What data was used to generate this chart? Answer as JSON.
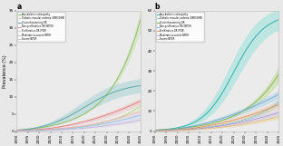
{
  "panel_a": {
    "title": "a",
    "lines": [
      {
        "label": "Any diabetic retinopathy",
        "color": "#8cc068",
        "lw": 0.7,
        "alpha": 1.0,
        "dashed": false
      },
      {
        "label": "Diabetic macular oedema (DMO/DME)",
        "color": "#8cc068",
        "lw": 0.5,
        "alpha": 0.7,
        "dashed": true
      },
      {
        "label": "Vision threatening DR",
        "color": "#60a8a8",
        "lw": 0.7,
        "alpha": 1.0,
        "dashed": false
      },
      {
        "label": "Non-proliferative DR (NPDR)",
        "color": "#e07878",
        "lw": 0.6,
        "alpha": 1.0,
        "dashed": false
      },
      {
        "label": "Proliferative DR (PDR)",
        "color": "#e8b0b0",
        "lw": 0.5,
        "alpha": 1.0,
        "dashed": false
      },
      {
        "label": "Moderate-to-severe NPDR",
        "color": "#90b8e0",
        "lw": 0.5,
        "alpha": 1.0,
        "dashed": false
      },
      {
        "label": "Severe NPDR",
        "color": "#c0b0d8",
        "lw": 0.5,
        "alpha": 1.0,
        "dashed": false
      }
    ],
    "ci_color_any": "#c8e0a8",
    "ci_color_vtdr": "#a0d0d0",
    "ci_color_npdr": "#f0c0c0",
    "ci_color_pdr": "#f0d8d8",
    "ci_color_mod": "#c8d8f0",
    "ci_color_sev": "#ddd0ec",
    "ci_color_dmo": "#d8ecb8",
    "ylabel": "Prevalence (%)",
    "xlim": [
      1990,
      2045
    ],
    "ylim": [
      0,
      35
    ],
    "yticks": [
      0,
      5,
      10,
      15,
      20,
      25,
      30,
      35
    ],
    "xticks": [
      1990,
      1995,
      2000,
      2005,
      2010,
      2015,
      2020,
      2025,
      2030,
      2035,
      2040,
      2045
    ]
  },
  "panel_b": {
    "title": "b",
    "lines": [
      {
        "label": "Any diabetic retinopathy",
        "color": "#30b0a8",
        "lw": 0.7,
        "alpha": 1.0,
        "dashed": false
      },
      {
        "label": "Diabetic macular oedema (DMO/DME)",
        "color": "#30b0a8",
        "lw": 0.5,
        "alpha": 0.7,
        "dashed": true
      },
      {
        "label": "Vision threatening DR",
        "color": "#88b858",
        "lw": 0.7,
        "alpha": 1.0,
        "dashed": false
      },
      {
        "label": "Non-proliferative DR (NPDR)",
        "color": "#68a8d0",
        "lw": 0.6,
        "alpha": 1.0,
        "dashed": false
      },
      {
        "label": "Proliferative DR (PDR)",
        "color": "#e09060",
        "lw": 0.6,
        "alpha": 1.0,
        "dashed": false
      },
      {
        "label": "Moderate-to-severe NPDR",
        "color": "#a890d0",
        "lw": 0.5,
        "alpha": 1.0,
        "dashed": false
      },
      {
        "label": "Severe NPDR",
        "color": "#e0b878",
        "lw": 0.5,
        "alpha": 1.0,
        "dashed": false
      }
    ],
    "ci_color_any": "#90e0d8",
    "ci_color_vtdr": "#c0d890",
    "ci_color_npdr": "#a8d0e8",
    "ci_color_pdr": "#f0c8a8",
    "ci_color_mod": "#d0c0e8",
    "ci_color_sev": "#ecd8a8",
    "ci_color_dmo": "#90e0d8",
    "ylabel": "",
    "xlim": [
      1990,
      2045
    ],
    "ylim": [
      0,
      60
    ],
    "yticks": [
      0,
      10,
      20,
      30,
      40,
      50,
      60
    ],
    "xticks": [
      1990,
      1995,
      2000,
      2005,
      2010,
      2015,
      2020,
      2025,
      2030,
      2035,
      2040,
      2045
    ]
  },
  "bg_color": "#e8e8e8",
  "plot_bg": "#ebebeb"
}
